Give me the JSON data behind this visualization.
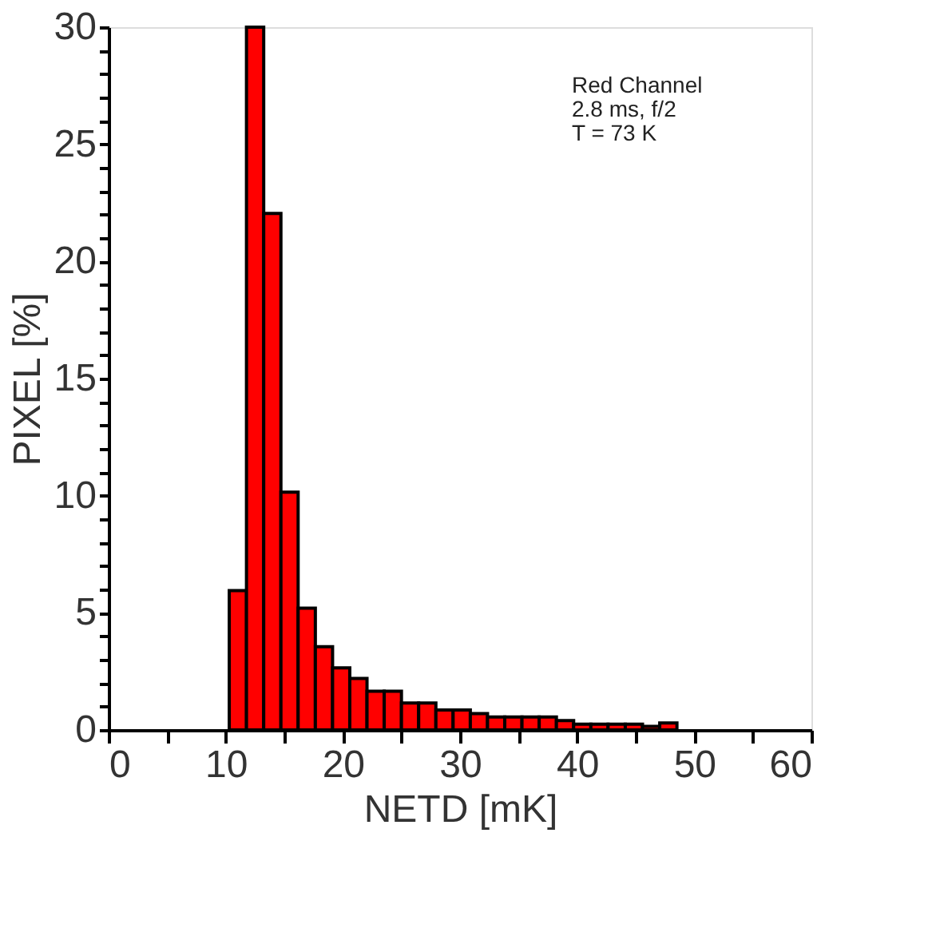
{
  "chart_data": {
    "type": "histogram",
    "xlabel": "NETD [mK]",
    "ylabel": "PIXEL [%]",
    "bins": [
      10.3,
      11.77,
      13.24,
      14.71,
      16.18,
      17.65,
      19.12,
      20.59,
      22.06,
      23.53,
      25.0,
      26.47,
      27.94,
      29.41,
      30.88,
      32.35,
      33.82,
      35.29,
      36.76,
      38.23,
      39.7,
      41.17,
      42.64,
      44.11,
      45.58,
      47.05,
      48.52
    ],
    "values": [
      5.95,
      30,
      22.05,
      10.15,
      5.2,
      3.55,
      2.65,
      2.2,
      1.65,
      1.65,
      1.15,
      1.15,
      0.85,
      0.85,
      0.7,
      0.55,
      0.55,
      0.55,
      0.55,
      0.4,
      0.25,
      0.25,
      0.25,
      0.25,
      0.15,
      0.3
    ],
    "color": "#ff0000",
    "xlim": [
      0,
      60
    ],
    "xticks": [
      0,
      {
        "value": 5,
        "label": null
      },
      10,
      {
        "value": 15,
        "label": null
      },
      20,
      {
        "value": 25,
        "label": null
      },
      30,
      {
        "value": 35,
        "label": null
      },
      40,
      {
        "value": 45,
        "label": null
      },
      50,
      {
        "value": 55,
        "label": null
      },
      60
    ],
    "ylim": [
      0,
      30
    ],
    "yticks": [
      0,
      {
        "value": 1,
        "label": null
      },
      {
        "value": 2,
        "label": null
      },
      {
        "value": 3,
        "label": null
      },
      {
        "value": 4,
        "label": null
      },
      5,
      {
        "value": 6,
        "label": null
      },
      {
        "value": 7,
        "label": null
      },
      {
        "value": 8,
        "label": null
      },
      {
        "value": 9,
        "label": null
      },
      10,
      {
        "value": 11,
        "label": null
      },
      {
        "value": 12,
        "label": null
      },
      {
        "value": 13,
        "label": null
      },
      {
        "value": 14,
        "label": null
      },
      15,
      {
        "value": 16,
        "label": null
      },
      {
        "value": 17,
        "label": null
      },
      {
        "value": 18,
        "label": null
      },
      {
        "value": 19,
        "label": null
      },
      20,
      {
        "value": 21,
        "label": null
      },
      {
        "value": 22,
        "label": null
      },
      {
        "value": 23,
        "label": null
      },
      {
        "value": 24,
        "label": null
      },
      25,
      {
        "value": 26,
        "label": null
      },
      {
        "value": 27,
        "label": null
      },
      {
        "value": 28,
        "label": null
      },
      {
        "value": 29,
        "label": null
      },
      30
    ],
    "annotations": [
      "Red Channel",
      "2.8 ms, f/2",
      "T = 73 K"
    ],
    "grid": false
  }
}
